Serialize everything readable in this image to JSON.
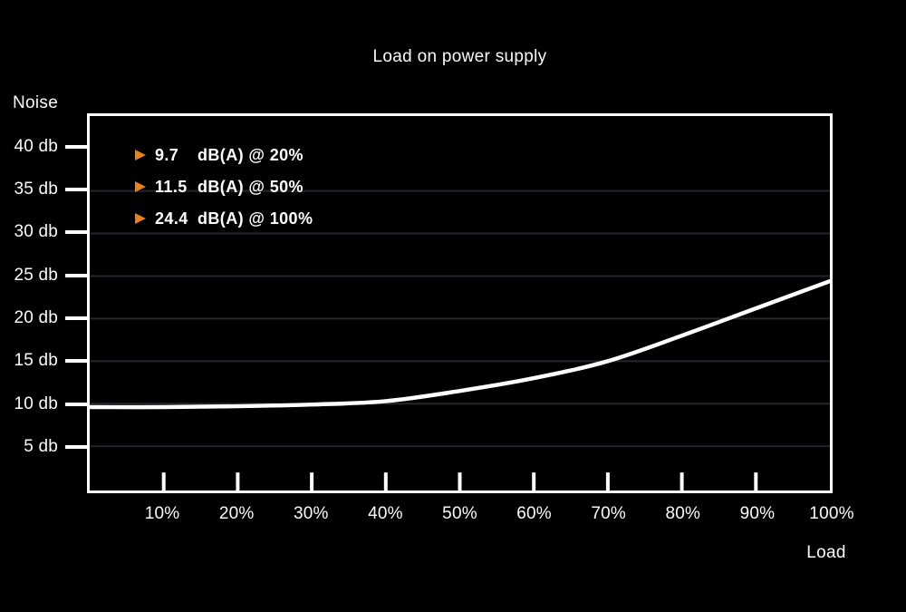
{
  "chart": {
    "title": "Load on power supply",
    "y_axis_title": "Noise",
    "x_axis_title": "Load"
  },
  "chart_data": {
    "type": "line",
    "title": "Load on power supply",
    "xlabel": "Load",
    "ylabel": "Noise",
    "xlim": [
      0,
      100
    ],
    "ylim": [
      -0.2,
      43.8
    ],
    "grid": "horizontal-faint",
    "legend_position": "top-left-inside",
    "x_ticks": [
      {
        "value": 10,
        "label": "10%"
      },
      {
        "value": 20,
        "label": "20%"
      },
      {
        "value": 30,
        "label": "30%"
      },
      {
        "value": 40,
        "label": "40%"
      },
      {
        "value": 50,
        "label": "50%"
      },
      {
        "value": 60,
        "label": "60%"
      },
      {
        "value": 70,
        "label": "70%"
      },
      {
        "value": 80,
        "label": "80%"
      },
      {
        "value": 90,
        "label": "90%"
      },
      {
        "value": 100,
        "label": "100%"
      }
    ],
    "y_ticks": [
      {
        "value": 40,
        "label": "40 db"
      },
      {
        "value": 35,
        "label": "35 db"
      },
      {
        "value": 30,
        "label": "30 db"
      },
      {
        "value": 25,
        "label": "25 db"
      },
      {
        "value": 20,
        "label": "20 db"
      },
      {
        "value": 15,
        "label": "15 db"
      },
      {
        "value": 10,
        "label": "10 db"
      },
      {
        "value": 5,
        "label": "5 db"
      }
    ],
    "gridline_values": [
      35,
      30,
      25,
      20,
      15,
      10,
      5
    ],
    "series": [
      {
        "name": "noise-curve",
        "x": [
          0,
          10,
          20,
          30,
          40,
          50,
          60,
          70,
          80,
          90,
          100
        ],
        "y": [
          9.6,
          9.6,
          9.7,
          9.9,
          10.3,
          11.5,
          13.0,
          15.0,
          18.0,
          21.2,
          24.4
        ]
      }
    ],
    "annotations": [
      {
        "value": "9.7",
        "label": "dB(A) @ 20%"
      },
      {
        "value": "11.5",
        "label": "dB(A) @ 50%"
      },
      {
        "value": "24.4",
        "label": "dB(A) @ 100%"
      }
    ],
    "colors": {
      "background": "#000000",
      "curve": "#ffffff",
      "axis": "#ffffff",
      "grid": "#23262b",
      "marker": "#e8821e",
      "text": "#fafafa"
    }
  }
}
